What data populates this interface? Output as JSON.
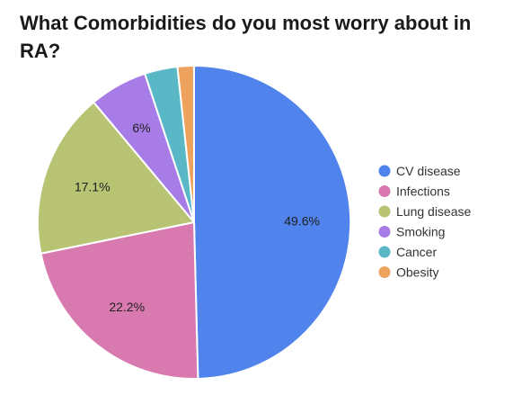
{
  "chart_data": {
    "type": "pie",
    "title": "What Comorbidities do you most worry about in RA?",
    "slices": [
      {
        "name": "CV disease",
        "value": 49.6,
        "label": "49.6%",
        "color": "#5083ec"
      },
      {
        "name": "Infections",
        "value": 22.2,
        "label": "22.2%",
        "color": "#d87ab0"
      },
      {
        "name": "Lung disease",
        "value": 17.1,
        "label": "17.1%",
        "color": "#b8c373"
      },
      {
        "name": "Smoking",
        "value": 6.0,
        "label": "6%",
        "color": "#a77ce6"
      },
      {
        "name": "Cancer",
        "value": 3.4,
        "label": "",
        "color": "#5ab8c6"
      },
      {
        "name": "Obesity",
        "value": 1.7,
        "label": "",
        "color": "#eda35e"
      }
    ],
    "legend_position": "right"
  }
}
